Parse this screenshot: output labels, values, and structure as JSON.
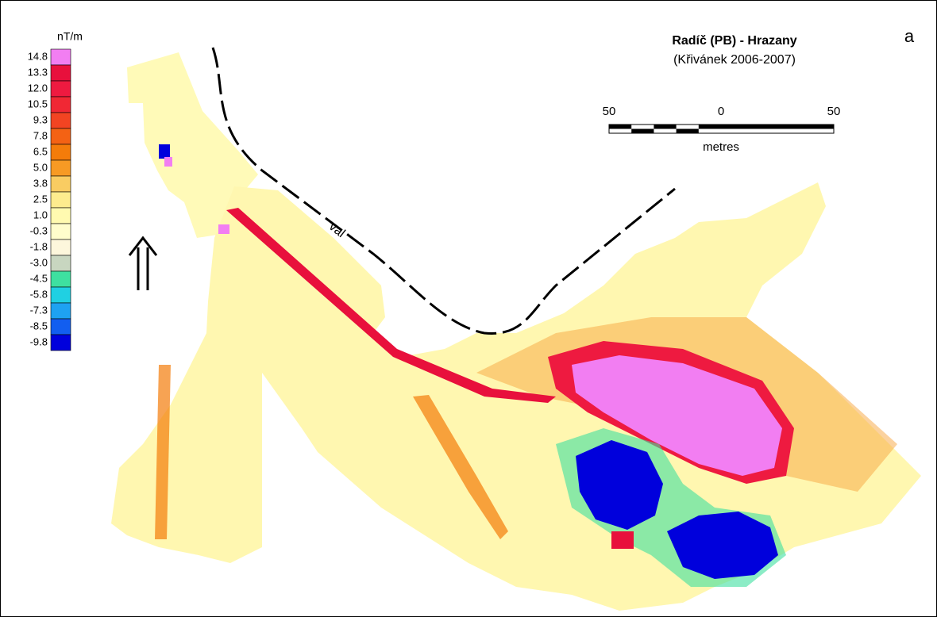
{
  "legend": {
    "unit": "nT/m",
    "items": [
      {
        "label": "14.8",
        "color": "#f27ef2"
      },
      {
        "label": "13.3",
        "color": "#e8103c"
      },
      {
        "label": "12.0",
        "color": "#ee1a40"
      },
      {
        "label": "10.5",
        "color": "#f02834"
      },
      {
        "label": "9.3",
        "color": "#f24422"
      },
      {
        "label": "7.8",
        "color": "#f46214"
      },
      {
        "label": "6.5",
        "color": "#f47c0a"
      },
      {
        "label": "5.0",
        "color": "#f79a24"
      },
      {
        "label": "3.8",
        "color": "#f9cc62"
      },
      {
        "label": "2.5",
        "color": "#fdec8e"
      },
      {
        "label": "1.0",
        "color": "#fffab0"
      },
      {
        "label": "-0.3",
        "color": "#fffdcc"
      },
      {
        "label": "-1.8",
        "color": "#fdf7dc"
      },
      {
        "label": "-3.0",
        "color": "#c8d6c0"
      },
      {
        "label": "-4.5",
        "color": "#3ee0a0"
      },
      {
        "label": "-5.8",
        "color": "#20d0e2"
      },
      {
        "label": "-7.3",
        "color": "#1ea2f2"
      },
      {
        "label": "-8.5",
        "color": "#125ef0"
      },
      {
        "label": "-9.8",
        "color": "#0000dc"
      }
    ]
  },
  "title": "Radíč (PB) - Hrazany",
  "subtitle": "(Křivánek 2006-2007)",
  "panel_label": "a",
  "scale_bar": {
    "labels": [
      "50",
      "0",
      "50"
    ],
    "unit": "metres"
  },
  "annotation": "val"
}
